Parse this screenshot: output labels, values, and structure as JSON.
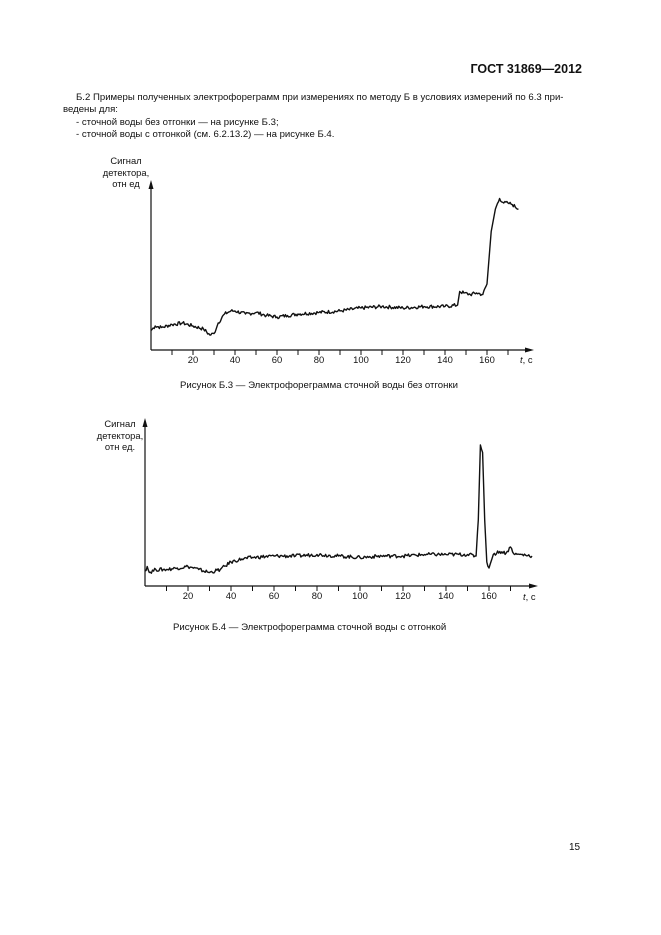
{
  "header": {
    "standard": "ГОСТ 31869—2012"
  },
  "paragraph": {
    "line1": "Б.2  Примеры полученных электрофореграмм при измерениях по методу Б в условиях измерений по 6.3 при-",
    "line2": "ведены для:",
    "items": [
      "- сточной воды без отгонки — на рисунке Б.3;",
      "- сточной воды с отгонкой (см. 6.2.13.2) — на рисунке Б.4."
    ]
  },
  "figures": [
    {
      "id": "B3",
      "ylabel": [
        "Сигнал",
        "детектора,",
        "отн  ед"
      ],
      "xlabel": "t, с",
      "caption": "Рисунок Б.3 — Электрофореграмма сточной воды без отгонки"
    },
    {
      "id": "B4",
      "ylabel": [
        "Сигнал",
        "детектора,",
        "отн  ед."
      ],
      "xlabel": "t, с",
      "caption": "Рисунок Б.4 — Электрофореграмма сточной воды с отгонкой"
    }
  ],
  "page_number": "15",
  "chart_data": [
    {
      "type": "line",
      "title": "Рисунок Б.3 — Электрофореграмма сточной воды без отгонки",
      "xlabel": "t, с",
      "ylabel": "Сигнал детектора, отн ед",
      "xticks": [
        20,
        40,
        60,
        80,
        100,
        120,
        140,
        160
      ],
      "minor_ticks": [
        10,
        30,
        50,
        70,
        90,
        110,
        130,
        150,
        170
      ],
      "xlim": [
        0,
        180
      ],
      "ylim": [
        0,
        100
      ],
      "grid": false,
      "legend": null,
      "series": [
        {
          "name": "signal",
          "x": [
            0,
            2,
            5,
            10,
            15,
            20,
            25,
            28,
            30,
            32,
            35,
            38,
            40,
            45,
            50,
            55,
            60,
            65,
            70,
            80,
            90,
            100,
            110,
            120,
            130,
            140,
            146,
            147,
            149,
            152,
            155,
            158,
            160,
            162,
            164,
            166,
            168,
            170,
            172,
            175
          ],
          "y": [
            9,
            12,
            11,
            13,
            14,
            12,
            10,
            6,
            7,
            14,
            20,
            22,
            22,
            20,
            21,
            19,
            18,
            19,
            20,
            21,
            22,
            24,
            25,
            24,
            25,
            25,
            26,
            35,
            34,
            33,
            34,
            33,
            40,
            75,
            90,
            97,
            94,
            94,
            93,
            90
          ]
        }
      ]
    },
    {
      "type": "line",
      "title": "Рисунок Б.4 — Электрофореграмма сточной воды с отгонкой",
      "xlabel": "t, с",
      "ylabel": "Сигнал детектора, отн ед.",
      "xticks": [
        20,
        40,
        60,
        80,
        100,
        120,
        140,
        160
      ],
      "minor_ticks": [
        10,
        30,
        50,
        70,
        90,
        110,
        130,
        150,
        170
      ],
      "xlim": [
        0,
        180
      ],
      "ylim": [
        0,
        100
      ],
      "grid": false,
      "legend": null,
      "series": [
        {
          "name": "signal",
          "x": [
            0,
            1,
            2,
            5,
            10,
            15,
            20,
            25,
            30,
            35,
            40,
            45,
            50,
            60,
            70,
            80,
            90,
            100,
            110,
            120,
            130,
            140,
            150,
            154,
            155,
            156,
            157,
            158,
            159,
            160,
            162,
            165,
            168,
            170,
            172,
            175,
            180
          ],
          "y": [
            6,
            9,
            5,
            7,
            7,
            8,
            9,
            7,
            5,
            7,
            12,
            14,
            15,
            16,
            16,
            17,
            16,
            15,
            16,
            16,
            17,
            17,
            17,
            16,
            40,
            90,
            85,
            40,
            12,
            8,
            17,
            19,
            18,
            22,
            17,
            17,
            16
          ]
        }
      ]
    }
  ]
}
